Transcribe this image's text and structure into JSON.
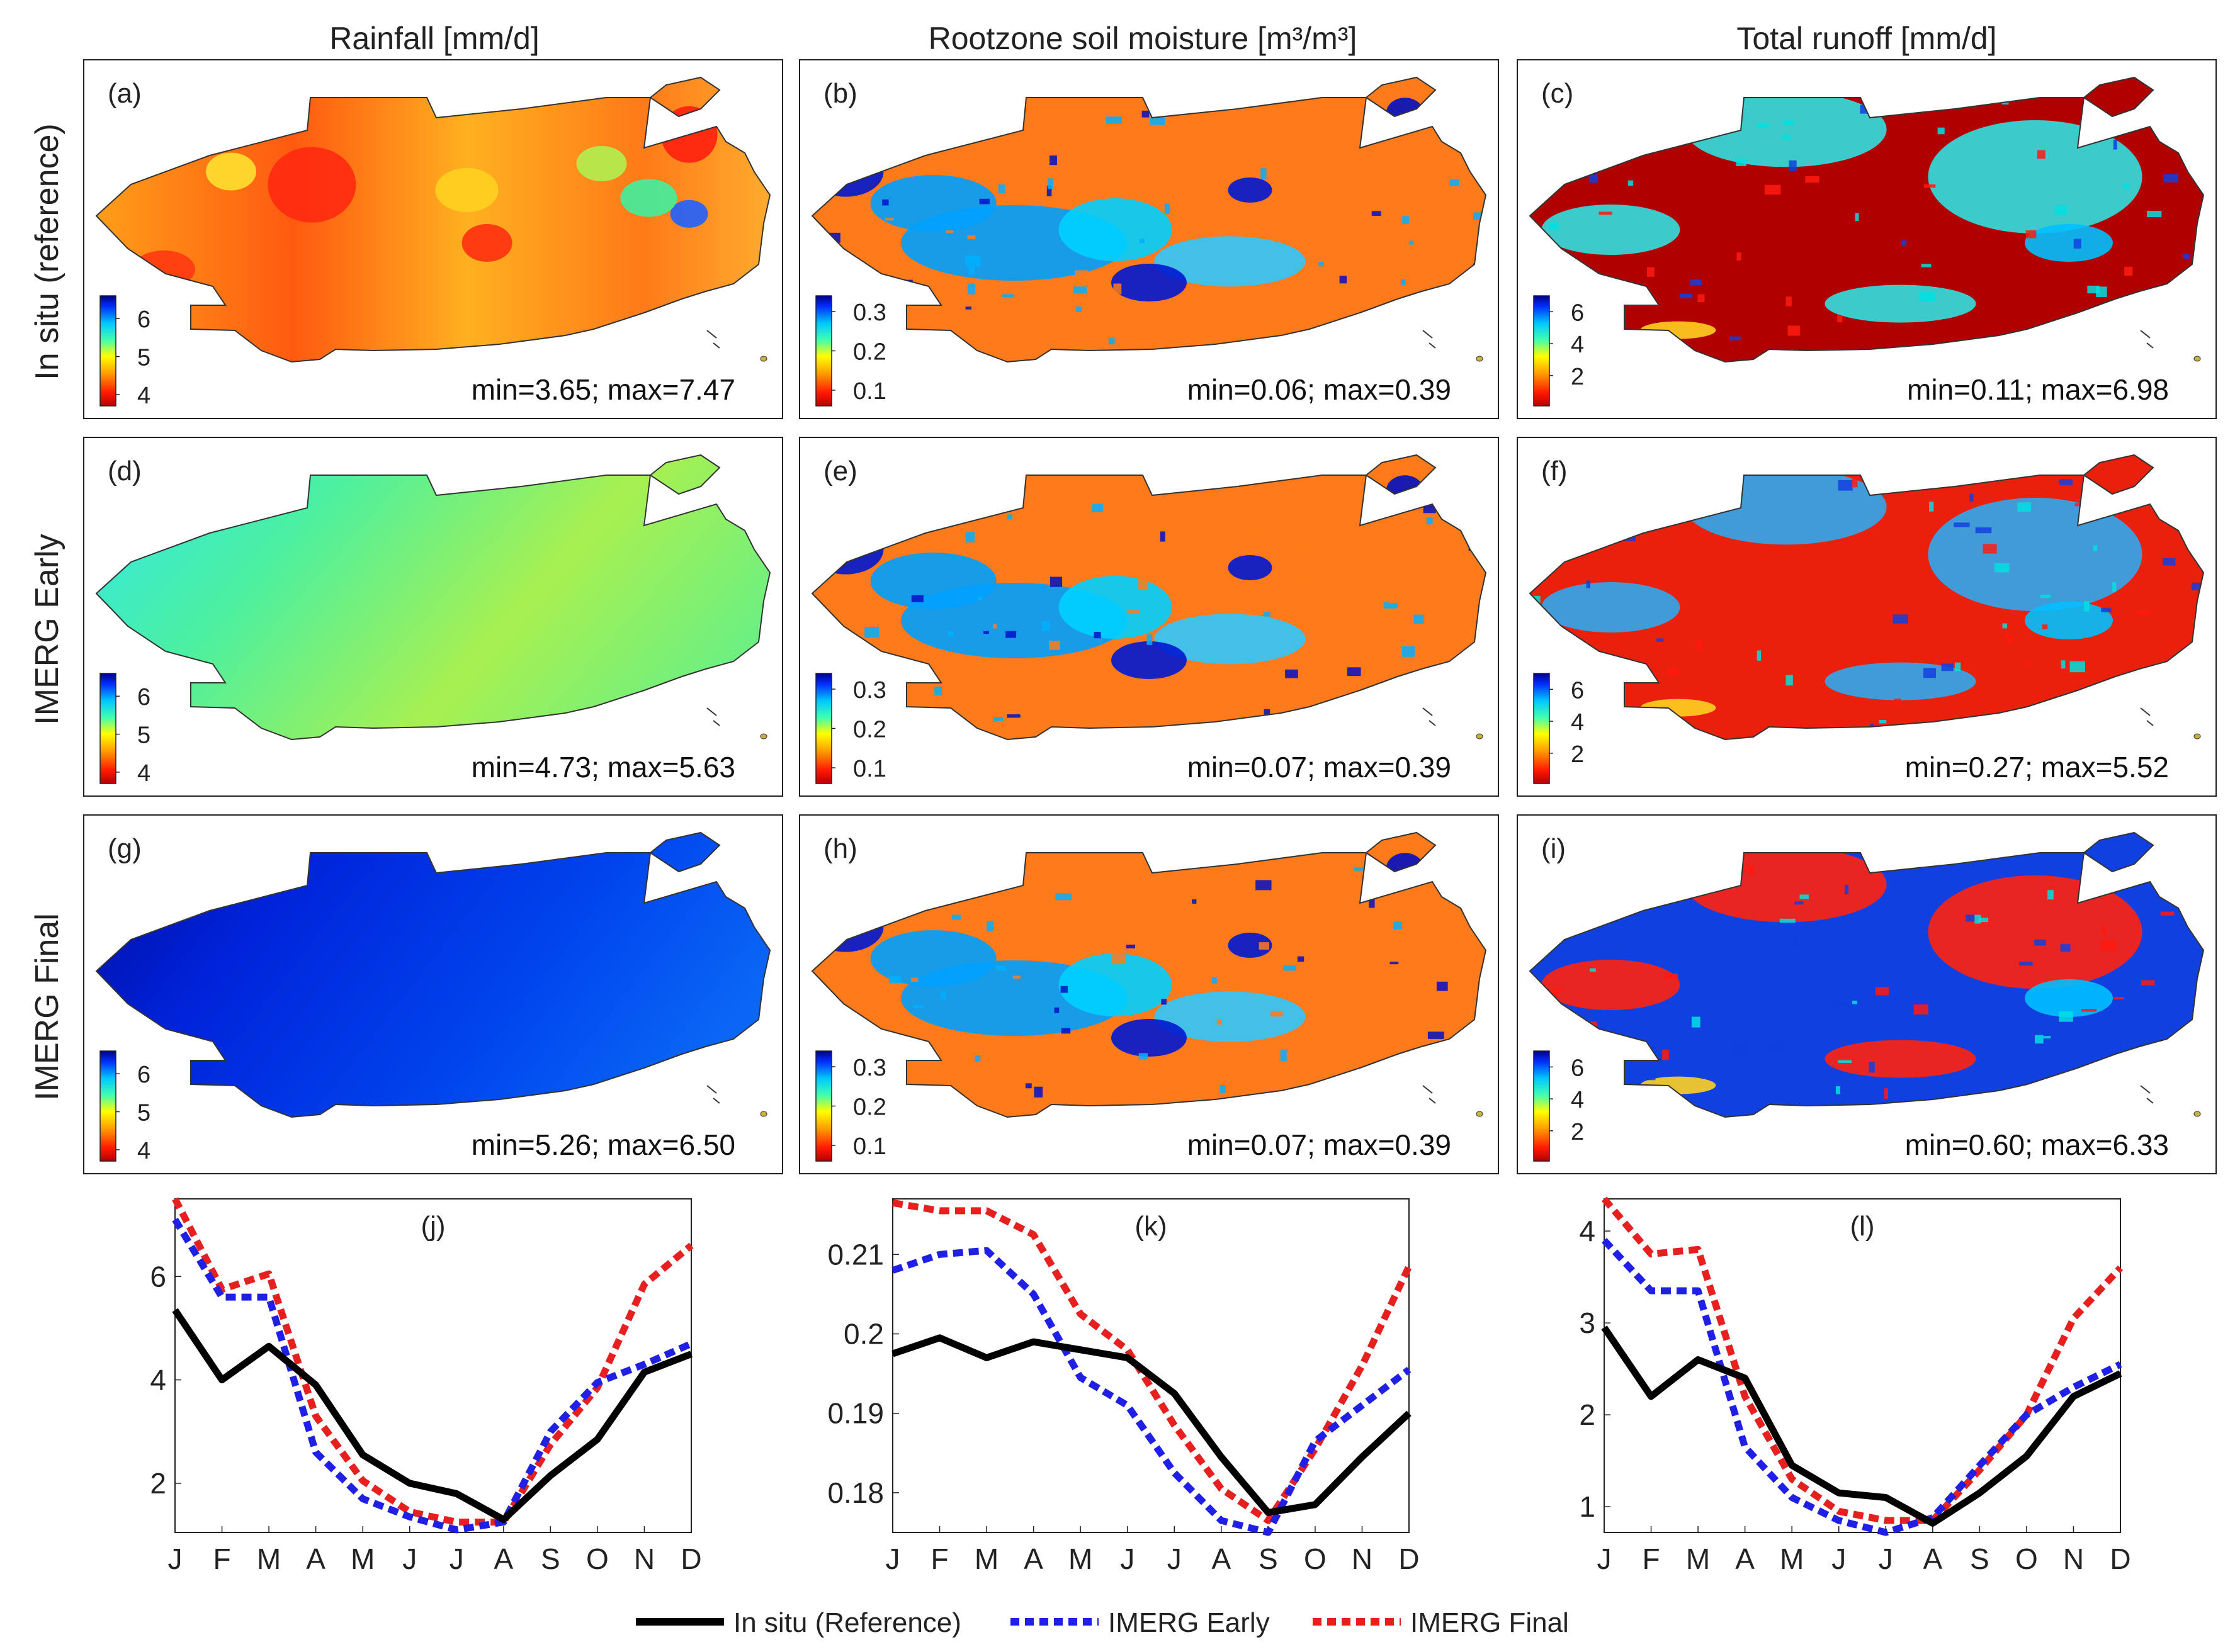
{
  "column_titles": {
    "rainfall": "Rainfall [mm/d]",
    "soil": "Rootzone soil moisture [m³/m³]",
    "runoff": "Total runoff [mm/d]"
  },
  "row_titles": [
    "In situ (reference)",
    "IMERG Early",
    "IMERG Final"
  ],
  "colorbars": {
    "rainfall": {
      "ticks": [
        "6",
        "5",
        "4"
      ],
      "range": [
        3.7,
        6.6
      ]
    },
    "soil": {
      "ticks": [
        "0.3",
        "0.2",
        "0.1"
      ],
      "range": [
        0.06,
        0.34
      ]
    },
    "runoff": {
      "ticks": [
        "6",
        "4",
        "2"
      ],
      "range": [
        0.1,
        7.0
      ]
    }
  },
  "map_panels": [
    {
      "label": "(a)",
      "stats": "min=3.65; max=7.47"
    },
    {
      "label": "(b)",
      "stats": "min=0.06; max=0.39"
    },
    {
      "label": "(c)",
      "stats": "min=0.11; max=6.98"
    },
    {
      "label": "(d)",
      "stats": "min=4.73; max=5.63"
    },
    {
      "label": "(e)",
      "stats": "min=0.07; max=0.39"
    },
    {
      "label": "(f)",
      "stats": "min=0.27; max=5.52"
    },
    {
      "label": "(g)",
      "stats": "min=5.26; max=6.50"
    },
    {
      "label": "(h)",
      "stats": "min=0.07; max=0.39"
    },
    {
      "label": "(i)",
      "stats": "min=0.60; max=6.33"
    }
  ],
  "colors": {
    "insitu": "#000000",
    "early": "#1f1fe6",
    "final": "#e61f1f"
  },
  "legend": [
    "In situ (Reference)",
    "IMERG Early",
    "IMERG Final"
  ],
  "chart_data": [
    {
      "type": "line",
      "label": "(j)",
      "categories": [
        "J",
        "F",
        "M",
        "A",
        "M",
        "J",
        "J",
        "A",
        "S",
        "O",
        "N",
        "D"
      ],
      "ylim": [
        1.05,
        7.5
      ],
      "yticks": [
        2,
        4,
        6
      ],
      "ytick_labels": [
        "2",
        "4",
        "6"
      ],
      "series": [
        {
          "name": "In situ (Reference)",
          "values": [
            5.35,
            4.0,
            4.65,
            3.9,
            2.55,
            2.0,
            1.8,
            1.3,
            2.15,
            2.85,
            4.15,
            4.5
          ]
        },
        {
          "name": "IMERG Early",
          "values": [
            7.1,
            5.6,
            5.6,
            2.6,
            1.7,
            1.35,
            1.1,
            1.25,
            3.0,
            3.95,
            4.3,
            4.7
          ]
        },
        {
          "name": "IMERG Final",
          "values": [
            7.5,
            5.75,
            6.05,
            3.3,
            2.05,
            1.45,
            1.25,
            1.25,
            2.75,
            3.85,
            5.85,
            6.6
          ]
        }
      ]
    },
    {
      "type": "line",
      "label": "(k)",
      "categories": [
        "J",
        "F",
        "M",
        "A",
        "M",
        "J",
        "J",
        "A",
        "S",
        "O",
        "N",
        "D"
      ],
      "ylim": [
        0.175,
        0.217
      ],
      "yticks": [
        0.18,
        0.19,
        0.2,
        0.21
      ],
      "ytick_labels": [
        "0.18",
        "0.19",
        "0.2",
        "0.21"
      ],
      "series": [
        {
          "name": "In situ (Reference)",
          "values": [
            0.1975,
            0.1995,
            0.197,
            0.199,
            0.198,
            0.197,
            0.1925,
            0.1845,
            0.1775,
            0.1785,
            0.1845,
            0.19
          ]
        },
        {
          "name": "IMERG Early",
          "values": [
            0.208,
            0.21,
            0.2105,
            0.205,
            0.1945,
            0.191,
            0.1825,
            0.1765,
            0.175,
            0.1865,
            0.191,
            0.1955
          ]
        },
        {
          "name": "IMERG Final",
          "values": [
            0.2165,
            0.2155,
            0.2155,
            0.2125,
            0.2025,
            0.198,
            0.1885,
            0.1805,
            0.1765,
            0.1855,
            0.196,
            0.2085
          ]
        }
      ]
    },
    {
      "type": "line",
      "label": "(l)",
      "categories": [
        "J",
        "F",
        "M",
        "A",
        "M",
        "J",
        "J",
        "A",
        "S",
        "O",
        "N",
        "D"
      ],
      "ylim": [
        0.72,
        4.35
      ],
      "yticks": [
        1,
        2,
        3,
        4
      ],
      "ytick_labels": [
        "1",
        "2",
        "3",
        "4"
      ],
      "series": [
        {
          "name": "In situ (Reference)",
          "values": [
            2.95,
            2.2,
            2.6,
            2.4,
            1.45,
            1.15,
            1.1,
            0.82,
            1.15,
            1.55,
            2.2,
            2.45
          ]
        },
        {
          "name": "IMERG Early",
          "values": [
            3.9,
            3.35,
            3.35,
            1.65,
            1.1,
            0.85,
            0.72,
            0.88,
            1.45,
            2.0,
            2.3,
            2.55
          ]
        },
        {
          "name": "IMERG Final",
          "values": [
            4.35,
            3.75,
            3.8,
            2.2,
            1.3,
            0.95,
            0.85,
            0.85,
            1.4,
            2.0,
            3.05,
            3.6
          ]
        }
      ]
    }
  ]
}
